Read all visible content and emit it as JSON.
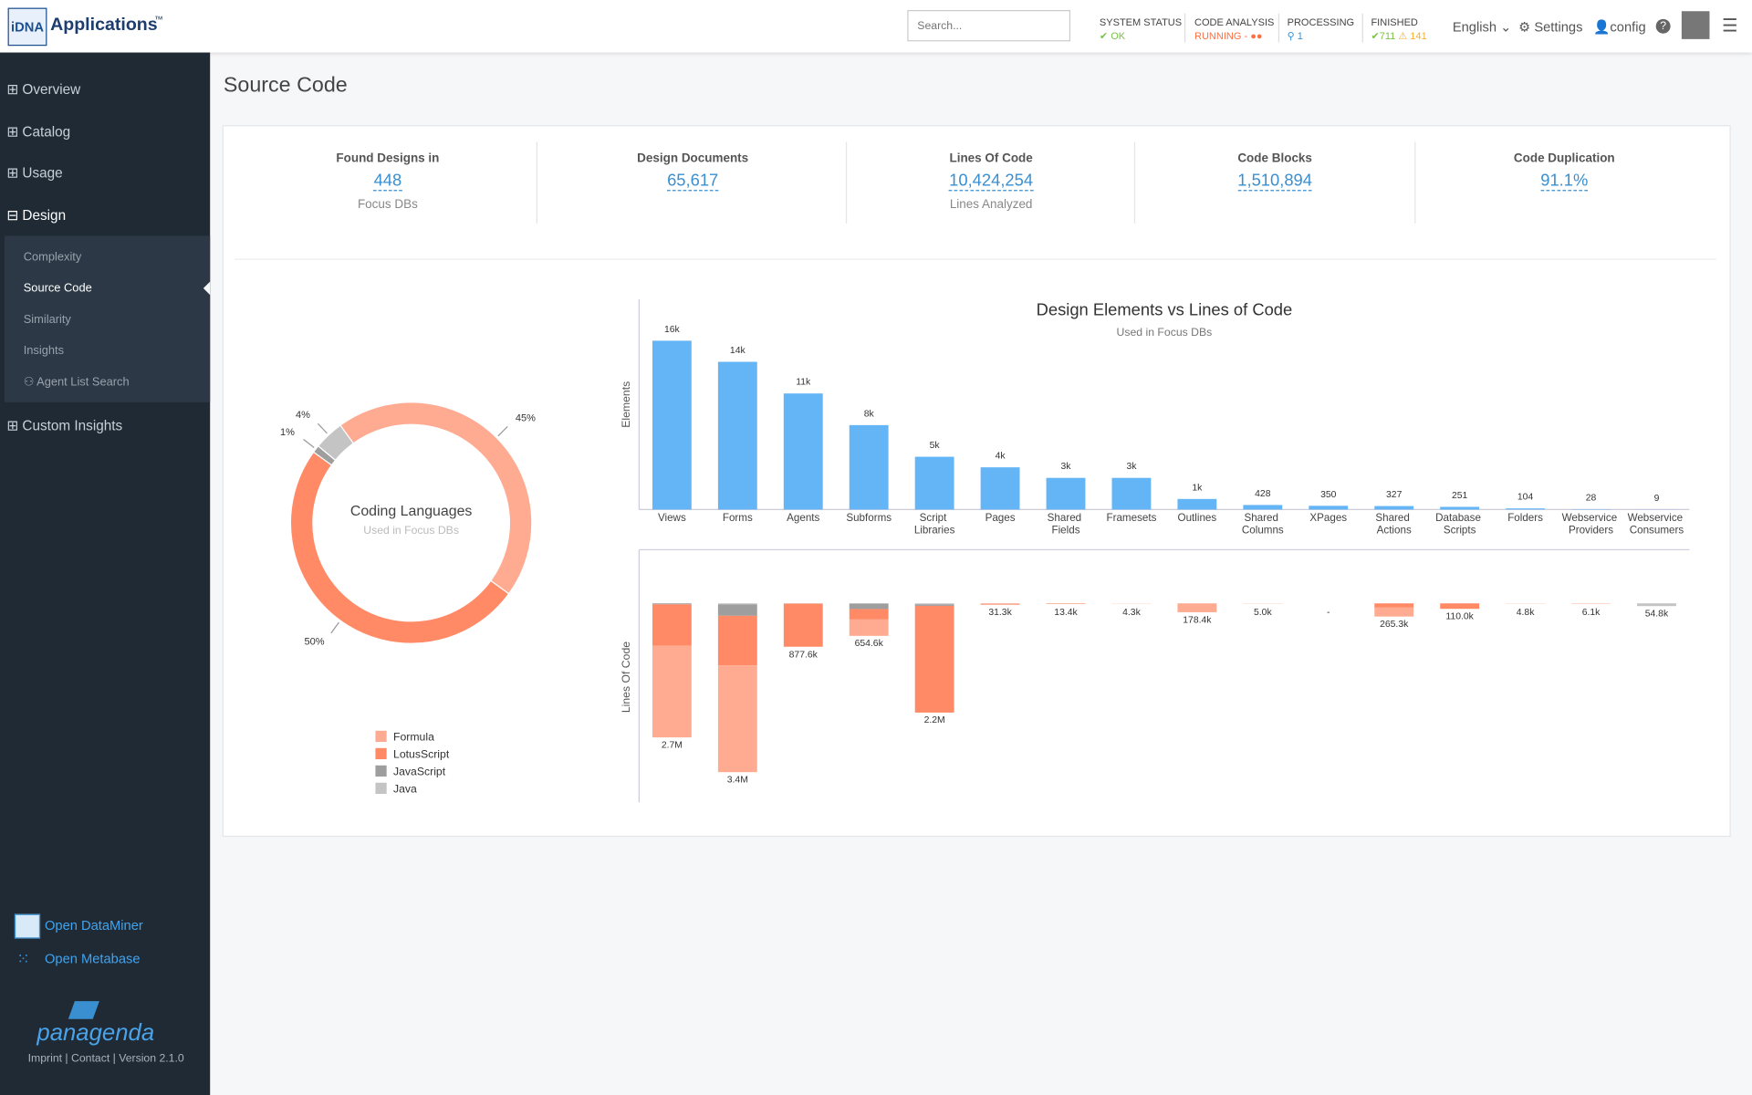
{
  "header": {
    "logo": "iDNA",
    "app_name": "Applications",
    "trademark": "™",
    "search_placeholder": "Search...",
    "statuses": [
      {
        "label": "SYSTEM STATUS",
        "value": "OK"
      },
      {
        "label": "CODE ANALYSIS",
        "value": "RUNNING -"
      },
      {
        "label": "PROCESSING",
        "value": "1"
      },
      {
        "label": "FINISHED",
        "value": "711",
        "warn": "141"
      }
    ],
    "language": "English",
    "settings": "Settings",
    "user": "config"
  },
  "sidebar": {
    "items": [
      "Overview",
      "Catalog",
      "Usage",
      "Design"
    ],
    "sub_items": [
      "Complexity",
      "Source Code",
      "Similarity",
      "Insights",
      "Agent List Search"
    ],
    "custom": "Custom Insights",
    "links": [
      "Open DataMiner",
      "Open Metabase"
    ],
    "brand": "panagenda",
    "footer": "Imprint | Contact | Version 2.1.0"
  },
  "page_title": "Source Code",
  "kpis": [
    {
      "title": "Found Designs in",
      "value": "448",
      "sub": "Focus DBs"
    },
    {
      "title": "Design Documents",
      "value": "65,617"
    },
    {
      "title": "Lines Of Code",
      "value": "10,424,254",
      "sub": "Lines Analyzed"
    },
    {
      "title": "Code Blocks",
      "value": "1,510,894"
    },
    {
      "title": "Code Duplication",
      "value": "91.1%"
    }
  ],
  "donut": {
    "type": "pie",
    "title": "Coding Languages",
    "subtitle": "Used in Focus DBs",
    "categories": [
      "Formula",
      "LotusScript",
      "JavaScript",
      "Java"
    ],
    "values": [
      45,
      50,
      1,
      4
    ],
    "value_labels": [
      "45%",
      "50%",
      "1%",
      "4%"
    ],
    "colors": [
      "#ffab91",
      "#ff8a65",
      "#9e9e9e",
      "#c4c4c4"
    ]
  },
  "elements": {
    "type": "bar",
    "title": "Design Elements vs Lines of Code",
    "subtitle": "Used in Focus DBs",
    "y_label": "Elements",
    "categories": [
      "Views",
      "Forms",
      "Agents",
      "Subforms",
      "Script Libraries",
      "Pages",
      "Shared Fields",
      "Framesets",
      "Outlines",
      "Shared Columns",
      "XPages",
      "Shared Actions",
      "Database Scripts",
      "Folders",
      "Webservice Providers",
      "Webservice Consumers"
    ],
    "values": [
      16000,
      14000,
      11000,
      8000,
      5000,
      4000,
      3000,
      3000,
      1000,
      428,
      350,
      327,
      251,
      104,
      28,
      9
    ],
    "value_labels": [
      "16k",
      "14k",
      "11k",
      "8k",
      "5k",
      "4k",
      "3k",
      "3k",
      "1k",
      "428",
      "350",
      "327",
      "251",
      "104",
      "28",
      "9"
    ],
    "color": "#64b5f6",
    "ylim": [
      0,
      17000
    ]
  },
  "loc": {
    "type": "bar",
    "stacked": true,
    "y_label": "Lines Of Code",
    "ylim": [
      0,
      3500000
    ],
    "series": [
      {
        "name": "Java",
        "color": "#c4c4c4",
        "values": [
          0,
          20000,
          5600,
          4600,
          20000,
          0,
          0,
          0,
          0,
          0,
          0,
          0,
          0,
          0,
          0,
          54800
        ]
      },
      {
        "name": "JavaScript",
        "color": "#9e9e9e",
        "values": [
          20000,
          230000,
          0,
          110000,
          30000,
          1300,
          0,
          0,
          0,
          0,
          0,
          0,
          0,
          0,
          0,
          0
        ]
      },
      {
        "name": "LotusScript",
        "color": "#ff8a65",
        "values": [
          830000,
          1000000,
          862000,
          210000,
          2150000,
          10000,
          5400,
          0,
          0,
          0,
          0,
          85300,
          110000,
          0,
          6100,
          0
        ]
      },
      {
        "name": "Formula",
        "color": "#ffab91",
        "values": [
          1850000,
          2150000,
          10000,
          330000,
          0,
          20000,
          8000,
          4300,
          178400,
          5000,
          0,
          180000,
          0,
          4800,
          0,
          0
        ]
      }
    ],
    "total_labels": [
      "2.7M",
      "3.4M",
      "877.6k",
      "654.6k",
      "2.2M",
      "31.3k",
      "13.4k",
      "4.3k",
      "178.4k",
      "5.0k",
      "-",
      "265.3k",
      "110.0k",
      "4.8k",
      "6.1k",
      "54.8k"
    ]
  }
}
